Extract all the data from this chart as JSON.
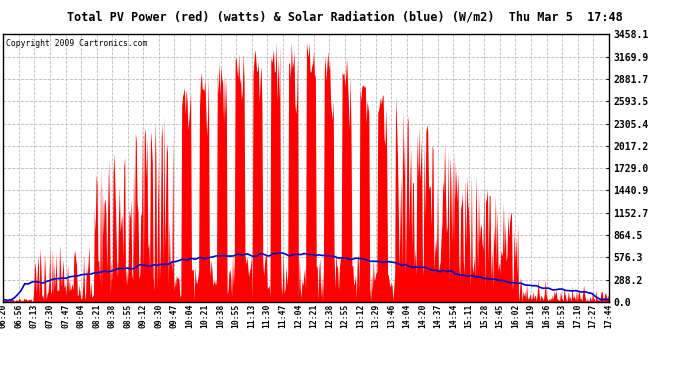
{
  "title": "Total PV Power (red) (watts) & Solar Radiation (blue) (W/m2)  Thu Mar 5  17:48",
  "copyright": "Copyright 2009 Cartronics.com",
  "y_max": 3458.1,
  "y_min": 0.0,
  "y_ticks": [
    0.0,
    288.2,
    576.3,
    864.5,
    1152.7,
    1440.9,
    1729.0,
    2017.2,
    2305.4,
    2593.5,
    2881.7,
    3169.9,
    3458.1
  ],
  "x_labels": [
    "06:20",
    "06:56",
    "07:13",
    "07:30",
    "07:47",
    "08:04",
    "08:21",
    "08:38",
    "08:55",
    "09:12",
    "09:30",
    "09:47",
    "10:04",
    "10:21",
    "10:38",
    "10:55",
    "11:13",
    "11:30",
    "11:47",
    "12:04",
    "12:21",
    "12:38",
    "12:55",
    "13:12",
    "13:29",
    "13:46",
    "14:04",
    "14:20",
    "14:37",
    "14:54",
    "15:11",
    "15:28",
    "15:45",
    "16:02",
    "16:19",
    "16:36",
    "16:53",
    "17:10",
    "17:27",
    "17:44"
  ],
  "bg_color": "#ffffff",
  "plot_bg_color": "#ffffff",
  "grid_color": "#bbbbbb",
  "red_color": "#ff0000",
  "blue_color": "#0000cc",
  "title_bg": "#cccccc",
  "border_color": "#000000",
  "solar_peak": 620,
  "pv_peak": 3400
}
